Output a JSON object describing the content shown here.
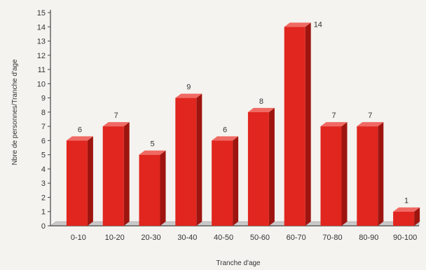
{
  "chart_data": {
    "type": "bar",
    "categories": [
      "0-10",
      "10-20",
      "20-30",
      "30-40",
      "40-50",
      "50-60",
      "60-70",
      "70-80",
      "80-90",
      "90-100"
    ],
    "values": [
      6,
      7,
      5,
      9,
      6,
      8,
      14,
      7,
      7,
      1
    ],
    "data_labels": [
      "6",
      "7",
      "5",
      "9",
      "6",
      "8",
      "14",
      "7",
      "7",
      "1"
    ],
    "title": "",
    "xlabel": "Tranche d'age",
    "ylabel": "Nbre de personnes/Tranche d'age",
    "ylim": [
      0,
      15
    ],
    "yticks": [
      "0",
      "1",
      "2",
      "3",
      "4",
      "5",
      "6",
      "7",
      "8",
      "9",
      "10",
      "11",
      "12",
      "13",
      "14",
      "15"
    ],
    "grid": false,
    "legend": "none",
    "colors": {
      "bar_front": "#e0261f",
      "bar_side": "#9e1510",
      "bar_top": "#f06a63",
      "axis": "#444444",
      "floor": "#c9c9c9"
    }
  }
}
